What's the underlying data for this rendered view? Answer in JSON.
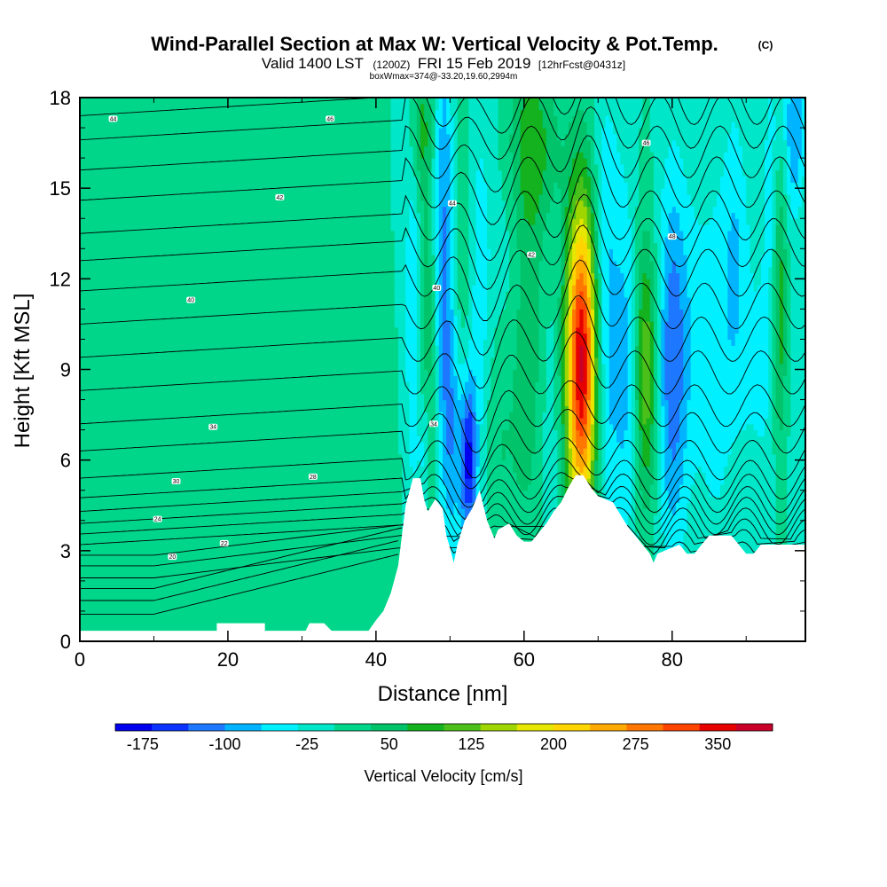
{
  "title": {
    "main": "Wind-Parallel Section at Max W: Vertical Velocity & Pot.Temp.",
    "copyright": "(C)",
    "valid_prefix": "Valid 1400 LST",
    "valid_utc": "(1200Z)",
    "valid_date": "FRI 15 Feb 2019",
    "valid_fcst": "[12hrFcst@0431z]",
    "box_info": "boxWmax=374@-33.20,19.60,2994m"
  },
  "chart_data": {
    "type": "heatmap",
    "xlabel": "Distance [nm]",
    "ylabel": "Height [Kft MSL]",
    "xlim": [
      0,
      98
    ],
    "ylim": [
      0,
      18
    ],
    "x_ticks": [
      0,
      20,
      40,
      60,
      80
    ],
    "y_ticks": [
      0,
      3,
      6,
      9,
      12,
      15,
      18
    ],
    "x_tick_labels": [
      "0",
      "20",
      "40",
      "60",
      "80"
    ],
    "y_tick_labels": [
      "0",
      "3",
      "6",
      "9",
      "12",
      "15",
      "18"
    ],
    "background_w": 0,
    "colorbar": {
      "label": "Vertical Velocity [cm/s]",
      "colors": [
        "#0000ee",
        "#0a33ff",
        "#1e78ff",
        "#00b4ff",
        "#00f0ff",
        "#00e6c8",
        "#00d68a",
        "#00c36a",
        "#13b21e",
        "#4cc01a",
        "#a0d600",
        "#e6e600",
        "#ffd500",
        "#ffaa00",
        "#ff7700",
        "#ff4400",
        "#e60000",
        "#c8002a"
      ],
      "tick_labels": [
        "-175",
        "-100",
        "-25",
        "50",
        "125",
        "200",
        "275",
        "350"
      ],
      "tick_values": [
        -175,
        -100,
        -25,
        50,
        125,
        200,
        275,
        350
      ],
      "min": -200,
      "max": 400
    },
    "terrain_kft": [
      [
        0,
        0.35
      ],
      [
        4,
        0.35
      ],
      [
        8,
        0.35
      ],
      [
        12,
        0.35
      ],
      [
        16,
        0.35
      ],
      [
        18.5,
        0.35
      ],
      [
        18.5,
        0.6
      ],
      [
        22,
        0.6
      ],
      [
        25,
        0.6
      ],
      [
        25,
        0.35
      ],
      [
        28,
        0.35
      ],
      [
        30,
        0.35
      ],
      [
        30.5,
        0.35
      ],
      [
        31,
        0.6
      ],
      [
        33,
        0.6
      ],
      [
        34,
        0.35
      ],
      [
        37,
        0.35
      ],
      [
        39,
        0.35
      ],
      [
        40,
        0.7
      ],
      [
        41,
        1.0
      ],
      [
        42,
        1.6
      ],
      [
        43,
        2.5
      ],
      [
        44,
        4.5
      ],
      [
        45,
        5.4
      ],
      [
        46,
        5.4
      ],
      [
        46.5,
        4.7
      ],
      [
        47,
        4.3
      ],
      [
        48,
        4.7
      ],
      [
        49,
        4.4
      ],
      [
        49.5,
        3.5
      ],
      [
        50,
        3.1
      ],
      [
        50.5,
        2.6
      ],
      [
        51,
        3.2
      ],
      [
        52,
        4.0
      ],
      [
        53,
        4.4
      ],
      [
        54,
        5.0
      ],
      [
        54.5,
        4.5
      ],
      [
        55,
        4.0
      ],
      [
        56,
        3.4
      ],
      [
        56.5,
        3.7
      ],
      [
        58,
        3.9
      ],
      [
        59,
        3.5
      ],
      [
        60,
        3.3
      ],
      [
        61,
        3.3
      ],
      [
        62,
        3.6
      ],
      [
        63,
        3.9
      ],
      [
        64,
        4.3
      ],
      [
        65,
        4.6
      ],
      [
        66,
        5.1
      ],
      [
        67,
        5.5
      ],
      [
        68,
        5.5
      ],
      [
        69,
        5.1
      ],
      [
        70,
        4.8
      ],
      [
        72,
        4.6
      ],
      [
        73,
        4.2
      ],
      [
        74,
        3.8
      ],
      [
        75,
        3.5
      ],
      [
        76,
        3.2
      ],
      [
        77,
        2.9
      ],
      [
        77.5,
        2.6
      ],
      [
        78,
        2.9
      ],
      [
        80,
        3.1
      ],
      [
        81,
        3.2
      ],
      [
        82,
        2.9
      ],
      [
        83,
        2.9
      ],
      [
        84,
        3.2
      ],
      [
        85,
        3.5
      ],
      [
        88,
        3.5
      ],
      [
        89,
        3.2
      ],
      [
        90,
        2.9
      ],
      [
        91,
        2.9
      ],
      [
        92,
        3.2
      ],
      [
        94,
        3.2
      ],
      [
        98,
        3.2
      ]
    ],
    "w_features": [
      {
        "x": 45,
        "z": 11,
        "sx": 0.8,
        "sz": 5.5,
        "w": -60
      },
      {
        "x": 46.5,
        "z": 6.5,
        "sx": 0.6,
        "sz": 1.6,
        "w": -60
      },
      {
        "x": 49.2,
        "z": 14,
        "sx": 0.9,
        "sz": 4.5,
        "w": -100
      },
      {
        "x": 50.2,
        "z": 7,
        "sx": 1.1,
        "sz": 3.0,
        "w": -95
      },
      {
        "x": 52.5,
        "z": 6,
        "sx": 0.8,
        "sz": 2.0,
        "w": -175
      },
      {
        "x": 54,
        "z": 11,
        "sx": 1.3,
        "sz": 5.0,
        "w": -60
      },
      {
        "x": 46.8,
        "z": 10,
        "sx": 0.9,
        "sz": 4.0,
        "w": 60
      },
      {
        "x": 51.8,
        "z": 11.5,
        "sx": 1.0,
        "sz": 4.5,
        "w": 45
      },
      {
        "x": 56.5,
        "z": 7,
        "sx": 2.0,
        "sz": 3.0,
        "w": 45
      },
      {
        "x": 58,
        "z": 12,
        "sx": 1.5,
        "sz": 5.0,
        "w": -30
      },
      {
        "x": 60.5,
        "z": 10,
        "sx": 1.8,
        "sz": 4.5,
        "w": 60
      },
      {
        "x": 63.5,
        "z": 7.5,
        "sx": 1.3,
        "sz": 4.0,
        "w": -30
      },
      {
        "x": 67.8,
        "z": 9.2,
        "sx": 1.5,
        "sz": 3.8,
        "w": 380
      },
      {
        "x": 71,
        "z": 10,
        "sx": 1.5,
        "sz": 5.5,
        "w": -90
      },
      {
        "x": 73.8,
        "z": 9,
        "sx": 1.0,
        "sz": 4.5,
        "w": -60
      },
      {
        "x": 76.5,
        "z": 9,
        "sx": 1.0,
        "sz": 3.0,
        "w": 130
      },
      {
        "x": 80,
        "z": 9,
        "sx": 1.3,
        "sz": 4.5,
        "w": -95
      },
      {
        "x": 82,
        "z": 10,
        "sx": 2.5,
        "sz": 4.0,
        "w": -50
      },
      {
        "x": 86,
        "z": 9,
        "sx": 1.5,
        "sz": 4.5,
        "w": -40
      },
      {
        "x": 88.5,
        "z": 13,
        "sx": 1.2,
        "sz": 3.5,
        "w": -60
      },
      {
        "x": 92,
        "z": 9,
        "sx": 2.5,
        "sz": 3.5,
        "w": -40
      },
      {
        "x": 94.5,
        "z": 11,
        "sx": 0.7,
        "sz": 3.5,
        "w": 110
      },
      {
        "x": 96.5,
        "z": 17,
        "sx": 1.0,
        "sz": 2.0,
        "w": -100
      },
      {
        "x": 93.5,
        "z": 15.5,
        "sx": 0.8,
        "sz": 3.5,
        "w": -50
      },
      {
        "x": 46,
        "z": 17,
        "sx": 1.0,
        "sz": 1.5,
        "w": 80
      },
      {
        "x": 61,
        "z": 16.5,
        "sx": 2.5,
        "sz": 2.0,
        "w": 80
      },
      {
        "x": 10,
        "z": 6,
        "sx": 1.5,
        "sz": 6,
        "w": 15
      },
      {
        "x": 14,
        "z": 2,
        "sx": 2,
        "sz": 2.5,
        "w": 18
      },
      {
        "x": 25,
        "z": 9,
        "sx": 2,
        "sz": 6,
        "w": 15
      },
      {
        "x": 35,
        "z": 12,
        "sx": 2,
        "sz": 5,
        "w": 14
      },
      {
        "x": 40,
        "z": 5,
        "sx": 2,
        "sz": 3,
        "w": 15
      },
      {
        "x": 20,
        "z": 15,
        "sx": 2,
        "sz": 3,
        "w": 14
      }
    ],
    "theta_contours": {
      "labels": [
        {
          "text": "44",
          "x": 4.5,
          "z": 17.3
        },
        {
          "text": "46",
          "x": 33.8,
          "z": 17.3
        },
        {
          "text": "42",
          "x": 27,
          "z": 14.7
        },
        {
          "text": "40",
          "x": 15,
          "z": 11.3
        },
        {
          "text": "34",
          "x": 18,
          "z": 7.1
        },
        {
          "text": "30",
          "x": 13,
          "z": 5.3
        },
        {
          "text": "28",
          "x": 31.5,
          "z": 5.45
        },
        {
          "text": "24",
          "x": 10.5,
          "z": 4.05
        },
        {
          "text": "22",
          "x": 19.5,
          "z": 3.25
        },
        {
          "text": "20",
          "x": 12.5,
          "z": 2.8
        },
        {
          "text": "44",
          "x": 50.3,
          "z": 14.5
        },
        {
          "text": "40",
          "x": 48.2,
          "z": 11.7
        },
        {
          "text": "42",
          "x": 61,
          "z": 12.8
        },
        {
          "text": "34",
          "x": 47.8,
          "z": 7.2
        },
        {
          "text": "46",
          "x": 76.5,
          "z": 16.5
        },
        {
          "text": "48",
          "x": 80,
          "z": 13.4
        }
      ]
    }
  }
}
